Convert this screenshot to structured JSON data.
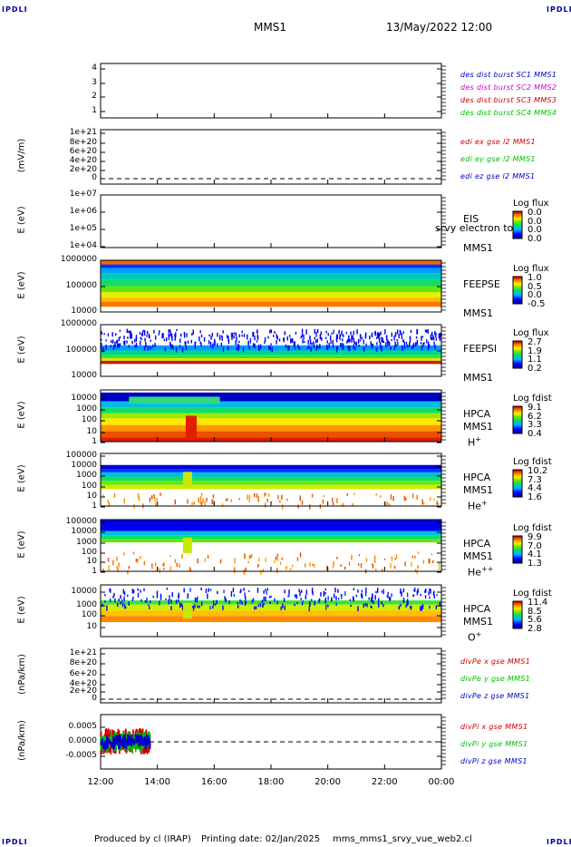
{
  "corners": {
    "tl": "IPDLI",
    "tr": "IPDLI",
    "bl": "IPDLI",
    "br": "IPDLI"
  },
  "header": {
    "mission": "MMS1",
    "datetime": "13/May/2022 12:00"
  },
  "footer": {
    "produced": "Produced by cl (IRAP)",
    "printing": "Printing date: 02/Jan/2025",
    "file": "mms_mms1_srvy_vue_web2.cl"
  },
  "colors": {
    "blue": "#0000c8",
    "magenta": "#d000d0",
    "red": "#d00000",
    "green": "#00c000"
  },
  "x_axis": {
    "ticks": [
      "12:00",
      "14:00",
      "16:00",
      "18:00",
      "20:00",
      "22:00",
      "00:00"
    ]
  },
  "chart_data": [
    {
      "type": "line",
      "panel": "burst",
      "ylabel": "",
      "yticks": [
        "4",
        "3",
        "2",
        "1"
      ],
      "ylim": [
        0.5,
        4.5
      ],
      "legend": [
        {
          "text": "des dist burst SC1 MMS1",
          "color": "#0000c8"
        },
        {
          "text": "des dist burst SC2 MMS2",
          "color": "#d000d0"
        },
        {
          "text": "des dist burst SC3 MMS3",
          "color": "#d00000"
        },
        {
          "text": "des dist burst SC4 MMS4",
          "color": "#00c000"
        }
      ],
      "series": []
    },
    {
      "type": "line",
      "panel": "edi",
      "ylabel": "(mV/m)",
      "yticks": [
        "1e+21",
        "8e+20",
        "6e+20",
        "4e+20",
        "2e+20",
        "0"
      ],
      "ylim": [
        0,
        1e+21
      ],
      "legend": [
        {
          "text": "edi ex gse l2 MMS1",
          "color": "#d00000"
        },
        {
          "text": "edi ey gse l2 MMS1",
          "color": "#00c000"
        },
        {
          "text": "edi ez gse l2 MMS1",
          "color": "#0000c8"
        }
      ],
      "series": []
    },
    {
      "type": "heatmap",
      "panel": "eis",
      "ylabel": "E (eV)",
      "yticks": [
        "1e+07",
        "1e+06",
        "1e+05",
        "1e+04"
      ],
      "instrument": [
        "EIS",
        "MMS1"
      ],
      "overlay": "srvy electron to",
      "colorbar": {
        "title": "Log flux",
        "ticks": [
          "0.0",
          "0.0",
          "0.0",
          "0.0"
        ]
      },
      "coverage": {
        "start_hour": 12,
        "end_hour": 12
      }
    },
    {
      "type": "heatmap",
      "panel": "feepse",
      "ylabel": "E (eV)",
      "yticks": [
        "1000000",
        "100000",
        "10000"
      ],
      "instrument": [
        "FEEPSE",
        "MMS1"
      ],
      "colorbar": {
        "title": "Log flux",
        "ticks": [
          "1.0",
          "0.5",
          "0.0",
          "-0.5"
        ]
      },
      "coverage": {
        "start_hour": 12,
        "end_hour": 24
      }
    },
    {
      "type": "heatmap",
      "panel": "feepsi",
      "ylabel": "E (eV)",
      "yticks": [
        "1000000",
        "100000",
        "10000"
      ],
      "instrument": [
        "FEEPSI",
        "MMS1"
      ],
      "colorbar": {
        "title": "Log flux",
        "ticks": [
          "2.7",
          "1.9",
          "1.1",
          "0.2"
        ]
      },
      "coverage": {
        "start_hour": 12,
        "end_hour": 24
      }
    },
    {
      "type": "heatmap",
      "panel": "hpca-h",
      "ylabel": "E (eV)",
      "yticks": [
        "10000",
        "1000",
        "100",
        "10",
        "1"
      ],
      "instrument": [
        "HPCA",
        "MMS1"
      ],
      "species": "H",
      "species_sup": "+",
      "colorbar": {
        "title": "Log fdist",
        "ticks": [
          "9.1",
          "6.2",
          "3.3",
          "0.4"
        ]
      },
      "coverage": {
        "start_hour": 12,
        "end_hour": 24
      }
    },
    {
      "type": "heatmap",
      "panel": "hpca-he",
      "ylabel": "E (eV)",
      "yticks": [
        "100000",
        "10000",
        "1000",
        "100",
        "10",
        "1"
      ],
      "instrument": [
        "HPCA",
        "MMS1"
      ],
      "species": "He",
      "species_sup": "+",
      "colorbar": {
        "title": "Log fdist",
        "ticks": [
          "10.2",
          "7.3",
          "4.4",
          "1.6"
        ]
      },
      "coverage": {
        "start_hour": 12,
        "end_hour": 24
      }
    },
    {
      "type": "heatmap",
      "panel": "hpca-hepp",
      "ylabel": "E (eV)",
      "yticks": [
        "100000",
        "10000",
        "1000",
        "100",
        "10",
        "1"
      ],
      "instrument": [
        "HPCA",
        "MMS1"
      ],
      "species": "He",
      "species_sup": "++",
      "colorbar": {
        "title": "Log fdist",
        "ticks": [
          "9.9",
          "7.0",
          "4.1",
          "1.3"
        ]
      },
      "coverage": {
        "start_hour": 12,
        "end_hour": 24
      }
    },
    {
      "type": "heatmap",
      "panel": "hpca-o",
      "ylabel": "E (eV)",
      "yticks": [
        "10000",
        "1000",
        "100",
        "10"
      ],
      "instrument": [
        "HPCA",
        "MMS1"
      ],
      "species": "O",
      "species_sup": "+",
      "colorbar": {
        "title": "Log fdist",
        "ticks": [
          "11.4",
          "8.5",
          "5.6",
          "2.8"
        ]
      },
      "coverage": {
        "start_hour": 12,
        "end_hour": 24
      }
    },
    {
      "type": "line",
      "panel": "divpe",
      "ylabel": "(nPa/km)",
      "yticks": [
        "1e+21",
        "8e+20",
        "6e+20",
        "4e+20",
        "2e+20",
        "0"
      ],
      "ylim": [
        0,
        1e+21
      ],
      "legend": [
        {
          "text": "divPe x gse MMS1",
          "color": "#d00000"
        },
        {
          "text": "divPe y gse MMS1",
          "color": "#00c000"
        },
        {
          "text": "divPe z gse MMS1",
          "color": "#0000c8"
        }
      ],
      "series": []
    },
    {
      "type": "line",
      "panel": "divpi",
      "ylabel": "(nPa/km)",
      "yticks": [
        "0.0005",
        "0.0000",
        "-0.0005"
      ],
      "ylim": [
        -0.0009,
        0.0009
      ],
      "legend": [
        {
          "text": "divPi x gse MMS1",
          "color": "#d00000"
        },
        {
          "text": "divPi y gse MMS1",
          "color": "#00c000"
        },
        {
          "text": "divPi z gse MMS1",
          "color": "#0000c8"
        }
      ],
      "series": [
        {
          "name": "divPi x gse MMS1",
          "color": "#d00000",
          "x_range": [
            12.0,
            13.75
          ],
          "center": 1e-05,
          "amplitude": 0.00045
        },
        {
          "name": "divPi y gse MMS1",
          "color": "#00c000",
          "x_range": [
            12.0,
            13.75
          ],
          "center": 0.0,
          "amplitude": 0.00035
        },
        {
          "name": "divPi z gse MMS1",
          "color": "#0000c8",
          "x_range": [
            12.0,
            13.75
          ],
          "center": 0.0,
          "amplitude": 0.00025
        }
      ]
    }
  ]
}
